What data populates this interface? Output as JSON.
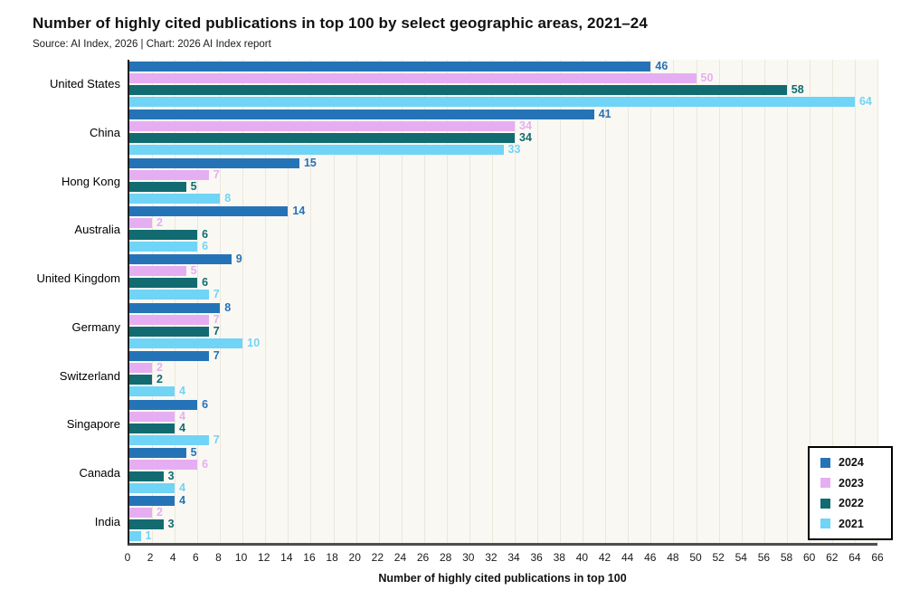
{
  "title": "Number of highly cited publications in top 100 by select geographic areas, 2021–24",
  "source": "Source: AI Index, 2026 | Chart: 2026 AI Index report",
  "colors": {
    "y2024": "#2573b7",
    "y2023": "#e5aef2",
    "y2022": "#116b70",
    "y2021": "#70d4f6",
    "axis_line": "#4d4d4d",
    "grid": "#ece7dd",
    "plot_background": "#faf8f3"
  },
  "chart_data": {
    "type": "bar",
    "orientation": "horizontal",
    "title": "Number of highly cited publications in top 100 by select geographic areas, 2021–24",
    "subtitle": "Source: AI Index, 2026 | Chart: 2026 AI Index report",
    "categories": [
      "United States",
      "China",
      "Hong Kong",
      "Australia",
      "United Kingdom",
      "Germany",
      "Switzerland",
      "Singapore",
      "Canada",
      "India"
    ],
    "series": [
      {
        "name": "2024",
        "color": "#2573b7",
        "values": [
          46,
          41,
          15,
          14,
          9,
          8,
          7,
          6,
          5,
          4
        ]
      },
      {
        "name": "2023",
        "color": "#e5aef2",
        "values": [
          50,
          34,
          7,
          2,
          5,
          7,
          2,
          4,
          6,
          2
        ]
      },
      {
        "name": "2022",
        "color": "#116b70",
        "values": [
          58,
          34,
          5,
          6,
          6,
          7,
          2,
          4,
          3,
          3
        ]
      },
      {
        "name": "2021",
        "color": "#70d4f6",
        "values": [
          64,
          33,
          8,
          6,
          7,
          10,
          4,
          7,
          4,
          1
        ]
      }
    ],
    "xlabel": "Number of highly cited publications in top 100",
    "ylabel": "",
    "xlim": [
      0,
      66
    ],
    "xticks": [
      0,
      2,
      4,
      6,
      8,
      10,
      12,
      14,
      16,
      18,
      20,
      22,
      24,
      26,
      28,
      30,
      32,
      34,
      36,
      38,
      40,
      42,
      44,
      46,
      48,
      50,
      52,
      54,
      56,
      58,
      60,
      62,
      64,
      66
    ],
    "grid": true,
    "value_labels": true,
    "legend_position": "bottom-right",
    "legend_entries": [
      "2024",
      "2023",
      "2022",
      "2021"
    ]
  }
}
